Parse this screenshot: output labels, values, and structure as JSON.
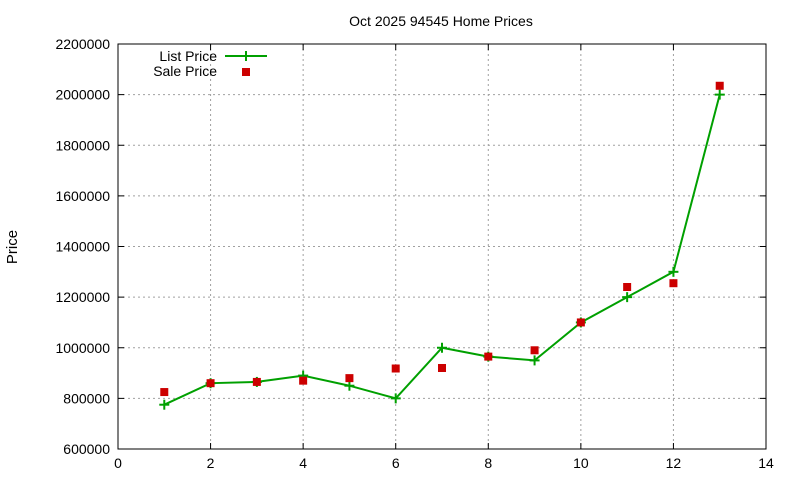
{
  "chart_data": {
    "type": "line",
    "title": "Oct 2025 94545 Home Prices",
    "xlabel": "",
    "ylabel": "Price",
    "xlim": [
      0,
      14
    ],
    "ylim": [
      600000,
      2200000
    ],
    "x_ticks": [
      0,
      2,
      4,
      6,
      8,
      10,
      12,
      14
    ],
    "y_ticks": [
      600000,
      800000,
      1000000,
      1200000,
      1400000,
      1600000,
      1800000,
      2000000,
      2200000
    ],
    "grid": true,
    "legend_position": "top-left",
    "series": [
      {
        "name": "List Price",
        "style": "linespoints-plus",
        "color": "#00a000",
        "x": [
          1,
          2,
          3,
          4,
          5,
          6,
          7,
          8,
          9,
          10,
          11,
          12,
          13
        ],
        "values": [
          775000,
          860000,
          865000,
          890000,
          850000,
          800000,
          1000000,
          965000,
          950000,
          1100000,
          1200000,
          1300000,
          2000000
        ]
      },
      {
        "name": "Sale Price",
        "style": "points-square",
        "color": "#cc0000",
        "x": [
          1,
          2,
          3,
          4,
          5,
          6,
          7,
          8,
          9,
          10,
          11,
          12,
          13
        ],
        "values": [
          825000,
          860000,
          865000,
          870000,
          880000,
          918000,
          920000,
          965000,
          990000,
          1100000,
          1240000,
          1255000,
          2035000
        ]
      }
    ]
  }
}
